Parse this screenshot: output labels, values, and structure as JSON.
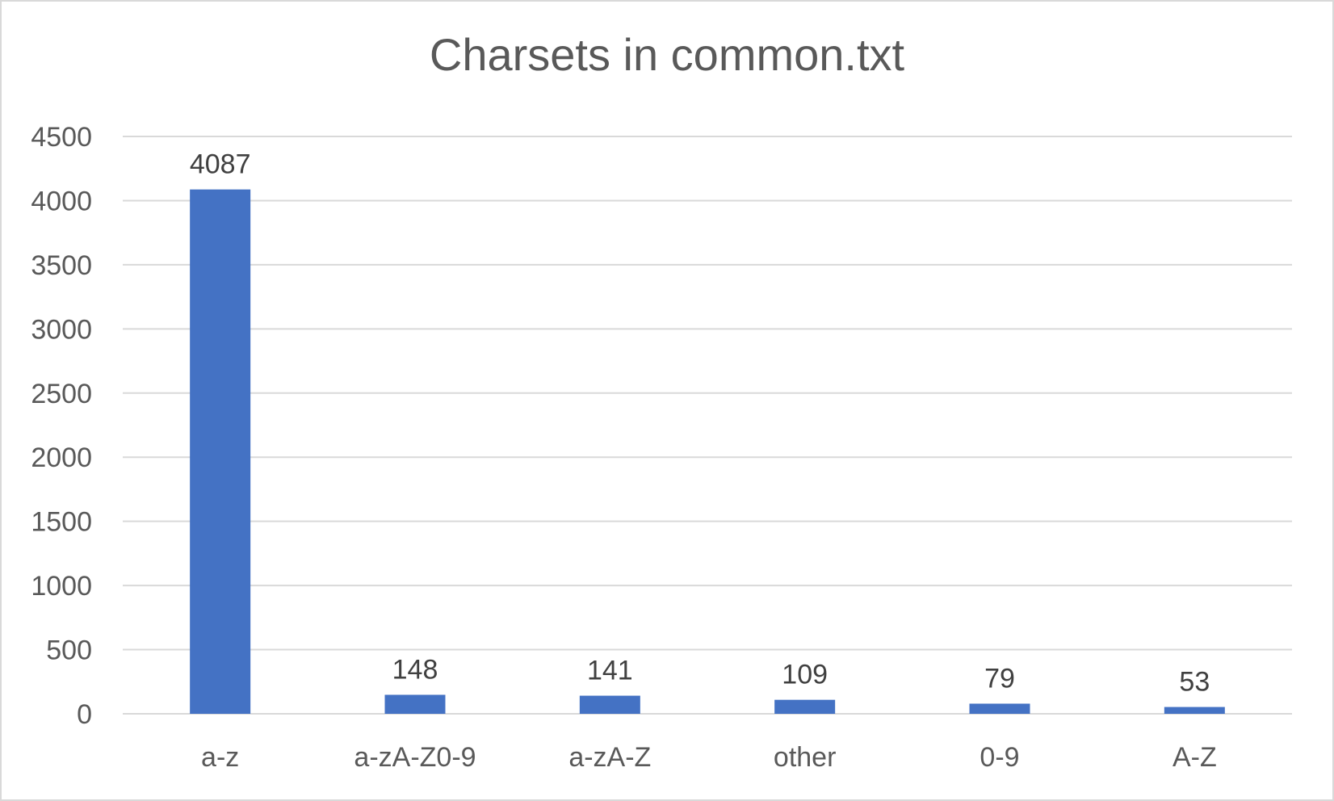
{
  "chart_data": {
    "type": "bar",
    "title": "Charsets in common.txt",
    "xlabel": "",
    "ylabel": "",
    "categories": [
      "a-z",
      "a-zA-Z0-9",
      "a-zA-Z",
      "other",
      "0-9",
      "A-Z"
    ],
    "values": [
      4087,
      148,
      141,
      109,
      79,
      53
    ],
    "data_labels": [
      "4087",
      "148",
      "141",
      "109",
      "79",
      "53"
    ],
    "ylim": [
      0,
      4500
    ],
    "y_ticks": [
      "0",
      "500",
      "1000",
      "1500",
      "2000",
      "2500",
      "3000",
      "3500",
      "4000",
      "4500"
    ],
    "grid": true,
    "legend": "none",
    "bar_color": "#4472c4",
    "grid_color": "#d9d9d9"
  }
}
